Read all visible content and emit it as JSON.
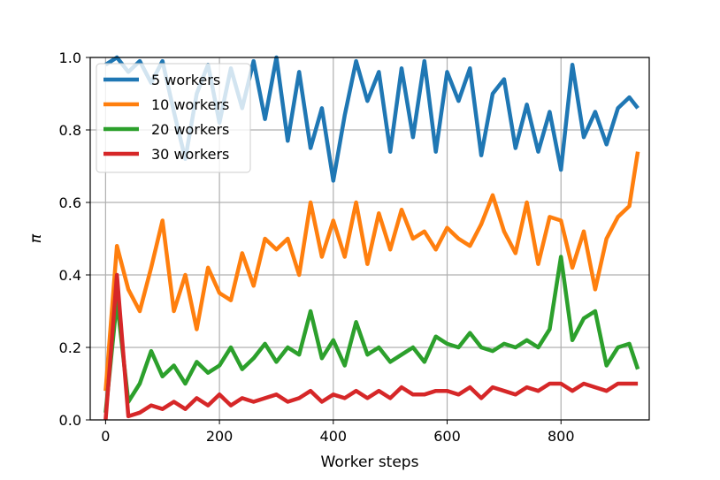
{
  "chart_data": {
    "type": "line",
    "title": "",
    "xlabel": "Worker steps",
    "ylabel": "π",
    "xlim": [
      -27,
      955
    ],
    "ylim": [
      0,
      1
    ],
    "xticks": [
      0,
      200,
      400,
      600,
      800
    ],
    "yticks": [
      0.0,
      0.2,
      0.4,
      0.6,
      0.8,
      1.0
    ],
    "xtick_labels": [
      "0",
      "200",
      "400",
      "600",
      "800"
    ],
    "ytick_labels": [
      "0.0",
      "0.2",
      "0.4",
      "0.6",
      "0.8",
      "1.0"
    ],
    "grid": true,
    "legend_position": "top-left",
    "x": [
      0,
      20,
      40,
      60,
      80,
      100,
      120,
      140,
      160,
      180,
      200,
      220,
      240,
      260,
      280,
      300,
      320,
      340,
      360,
      380,
      400,
      420,
      440,
      460,
      480,
      500,
      520,
      540,
      560,
      580,
      600,
      620,
      640,
      660,
      680,
      700,
      720,
      740,
      760,
      780,
      800,
      820,
      840,
      860,
      880,
      900,
      920,
      935
    ],
    "series": [
      {
        "name": "5 workers",
        "color": "#1f77b4",
        "values": [
          0.98,
          1.0,
          0.96,
          0.99,
          0.93,
          0.99,
          0.85,
          0.72,
          0.9,
          0.98,
          0.82,
          0.97,
          0.86,
          0.99,
          0.83,
          1.0,
          0.77,
          0.96,
          0.75,
          0.86,
          0.66,
          0.84,
          0.99,
          0.88,
          0.96,
          0.74,
          0.97,
          0.78,
          0.99,
          0.74,
          0.96,
          0.88,
          0.97,
          0.73,
          0.9,
          0.94,
          0.75,
          0.87,
          0.74,
          0.85,
          0.69,
          0.98,
          0.78,
          0.85,
          0.76,
          0.86,
          0.89,
          0.86
        ]
      },
      {
        "name": "10 workers",
        "color": "#ff7f0e",
        "values": [
          0.08,
          0.48,
          0.36,
          0.3,
          0.42,
          0.55,
          0.3,
          0.4,
          0.25,
          0.42,
          0.35,
          0.33,
          0.46,
          0.37,
          0.5,
          0.47,
          0.5,
          0.4,
          0.6,
          0.45,
          0.55,
          0.45,
          0.6,
          0.43,
          0.57,
          0.47,
          0.58,
          0.5,
          0.52,
          0.47,
          0.53,
          0.5,
          0.48,
          0.54,
          0.62,
          0.52,
          0.46,
          0.6,
          0.43,
          0.56,
          0.55,
          0.42,
          0.52,
          0.36,
          0.5,
          0.56,
          0.59,
          0.74
        ]
      },
      {
        "name": "20 workers",
        "color": "#2ca02c",
        "values": [
          0.02,
          0.33,
          0.05,
          0.1,
          0.19,
          0.12,
          0.15,
          0.1,
          0.16,
          0.13,
          0.15,
          0.2,
          0.14,
          0.17,
          0.21,
          0.16,
          0.2,
          0.18,
          0.3,
          0.17,
          0.22,
          0.15,
          0.27,
          0.18,
          0.2,
          0.16,
          0.18,
          0.2,
          0.16,
          0.23,
          0.21,
          0.2,
          0.24,
          0.2,
          0.19,
          0.21,
          0.2,
          0.22,
          0.2,
          0.25,
          0.45,
          0.22,
          0.28,
          0.3,
          0.15,
          0.2,
          0.21,
          0.14
        ]
      },
      {
        "name": "30 workers",
        "color": "#d62728",
        "values": [
          0.0,
          0.4,
          0.01,
          0.02,
          0.04,
          0.03,
          0.05,
          0.03,
          0.06,
          0.04,
          0.07,
          0.04,
          0.06,
          0.05,
          0.06,
          0.07,
          0.05,
          0.06,
          0.08,
          0.05,
          0.07,
          0.06,
          0.08,
          0.06,
          0.08,
          0.06,
          0.09,
          0.07,
          0.07,
          0.08,
          0.08,
          0.07,
          0.09,
          0.06,
          0.09,
          0.08,
          0.07,
          0.09,
          0.08,
          0.1,
          0.1,
          0.08,
          0.1,
          0.09,
          0.08,
          0.1,
          0.1,
          0.1
        ]
      }
    ]
  }
}
